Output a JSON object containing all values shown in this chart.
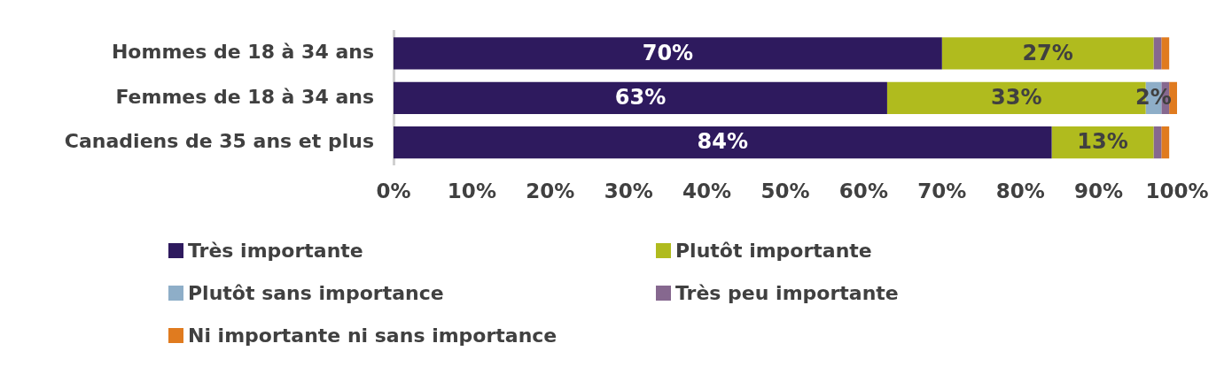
{
  "chart_data": {
    "type": "bar",
    "orientation": "horizontal",
    "stacked": true,
    "grid": false,
    "legend": "bottom",
    "categories": [
      "Hommes de 18 à 34 ans",
      "Femmes de 18 à 34 ans",
      "Canadiens de 35 ans et plus"
    ],
    "xlim": [
      0,
      100
    ],
    "xticks": [
      {
        "value": 0,
        "label": "0%"
      },
      {
        "value": 10,
        "label": "10%"
      },
      {
        "value": 20,
        "label": "20%"
      },
      {
        "value": 30,
        "label": "30%"
      },
      {
        "value": 40,
        "label": "40%"
      },
      {
        "value": 50,
        "label": "50%"
      },
      {
        "value": 60,
        "label": "60%"
      },
      {
        "value": 70,
        "label": "70%"
      },
      {
        "value": 80,
        "label": "80%"
      },
      {
        "value": 90,
        "label": "90%"
      },
      {
        "value": 100,
        "label": "100%"
      }
    ],
    "series": [
      {
        "name": "Très importante",
        "color": "#2e1a5e",
        "values": [
          70,
          63,
          84
        ],
        "value_labels": [
          "70%",
          "63%",
          "84%"
        ]
      },
      {
        "name": "Plutôt importante",
        "color": "#b0bb1e",
        "values": [
          27,
          33,
          13
        ],
        "value_labels": [
          "27%",
          "33%",
          "13%"
        ]
      },
      {
        "name": "Plutôt sans importance",
        "color": "#8eaec8",
        "values": [
          null,
          2,
          null
        ],
        "value_labels": [
          null,
          "2%",
          null
        ]
      },
      {
        "name": "Très peu importante",
        "color": "#86688f",
        "values": [
          1,
          1,
          1
        ],
        "value_labels": [
          null,
          null,
          null
        ]
      },
      {
        "name": "Ni importante ni sans importance",
        "color": "#e07b1f",
        "values": [
          1,
          1,
          1
        ],
        "value_labels": [
          null,
          null,
          null
        ]
      }
    ]
  }
}
